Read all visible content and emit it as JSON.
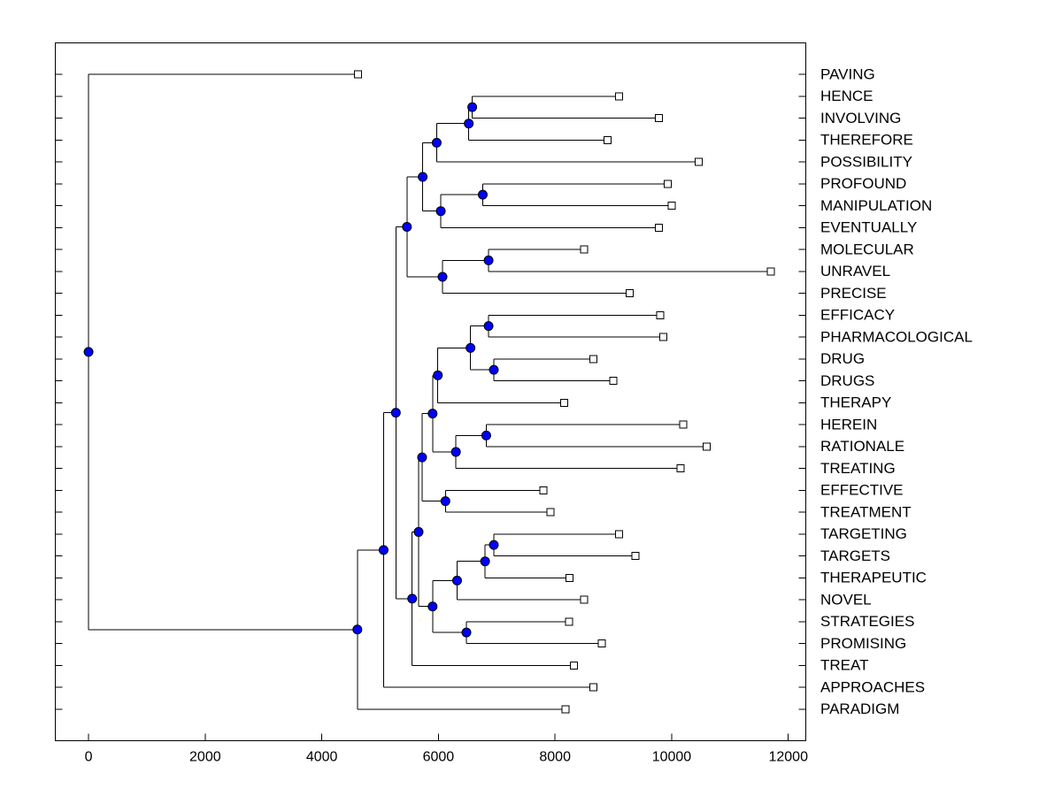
{
  "chart_data": {
    "type": "dendrogram",
    "orientation": "horizontal",
    "xticks": [
      0,
      2000,
      4000,
      6000,
      8000,
      10000,
      12000
    ],
    "xlim": [
      -570,
      12300
    ],
    "colors": {
      "node": "#0000ff",
      "leaf": "#ffffff",
      "line": "#000000"
    },
    "leaves": [
      {
        "label": "PAVING",
        "x": 4620
      },
      {
        "label": "HENCE",
        "x": 9100
      },
      {
        "label": "INVOLVING",
        "x": 9780
      },
      {
        "label": "THEREFORE",
        "x": 8900
      },
      {
        "label": "POSSIBILITY",
        "x": 10460
      },
      {
        "label": "PROFOUND",
        "x": 9930
      },
      {
        "label": "MANIPULATION",
        "x": 10000
      },
      {
        "label": "EVENTUALLY",
        "x": 9780
      },
      {
        "label": "MOLECULAR",
        "x": 8500
      },
      {
        "label": "UNRAVEL",
        "x": 11700
      },
      {
        "label": "PRECISE",
        "x": 9280
      },
      {
        "label": "EFFICACY",
        "x": 9800
      },
      {
        "label": "PHARMACOLOGICAL",
        "x": 9860
      },
      {
        "label": "DRUG",
        "x": 8660
      },
      {
        "label": "DRUGS",
        "x": 9000
      },
      {
        "label": "THERAPY",
        "x": 8160
      },
      {
        "label": "HEREIN",
        "x": 10200
      },
      {
        "label": "RATIONALE",
        "x": 10600
      },
      {
        "label": "TREATING",
        "x": 10150
      },
      {
        "label": "EFFECTIVE",
        "x": 7800
      },
      {
        "label": "TREATMENT",
        "x": 7920
      },
      {
        "label": "TARGETING",
        "x": 9100
      },
      {
        "label": "TARGETS",
        "x": 9380
      },
      {
        "label": "THERAPEUTIC",
        "x": 8250
      },
      {
        "label": "NOVEL",
        "x": 8500
      },
      {
        "label": "STRATEGIES",
        "x": 8240
      },
      {
        "label": "PROMISING",
        "x": 8800
      },
      {
        "label": "TREAT",
        "x": 8320
      },
      {
        "label": "APPROACHES",
        "x": 8660
      },
      {
        "label": "PARADIGM",
        "x": 8180
      }
    ],
    "merges": [
      {
        "id": "a1",
        "x": 6580,
        "children": [
          "L1",
          "L2"
        ]
      },
      {
        "id": "a2",
        "x": 6520,
        "children": [
          "a1",
          "L3"
        ]
      },
      {
        "id": "a3",
        "x": 5970,
        "children": [
          "a2",
          "L4"
        ]
      },
      {
        "id": "a4",
        "x": 6760,
        "children": [
          "L5",
          "L6"
        ]
      },
      {
        "id": "a5",
        "x": 6040,
        "children": [
          "a4",
          "L7"
        ]
      },
      {
        "id": "a6",
        "x": 5730,
        "children": [
          "a3",
          "a5"
        ]
      },
      {
        "id": "a7",
        "x": 6860,
        "children": [
          "L8",
          "L9"
        ]
      },
      {
        "id": "a8",
        "x": 6070,
        "children": [
          "a7",
          "L10"
        ]
      },
      {
        "id": "a9",
        "x": 5460,
        "children": [
          "a6",
          "a8"
        ]
      },
      {
        "id": "b1",
        "x": 6860,
        "children": [
          "L11",
          "L12"
        ]
      },
      {
        "id": "b2",
        "x": 6950,
        "children": [
          "L13",
          "L14"
        ]
      },
      {
        "id": "b3",
        "x": 6550,
        "children": [
          "b1",
          "b2"
        ]
      },
      {
        "id": "b4",
        "x": 5990,
        "children": [
          "b3",
          "L15"
        ]
      },
      {
        "id": "b5",
        "x": 6820,
        "children": [
          "L16",
          "L17"
        ]
      },
      {
        "id": "b6",
        "x": 6300,
        "children": [
          "b5",
          "L18"
        ]
      },
      {
        "id": "b7",
        "x": 5900,
        "children": [
          "b4",
          "b6"
        ]
      },
      {
        "id": "b8",
        "x": 6120,
        "children": [
          "L19",
          "L20"
        ]
      },
      {
        "id": "b9",
        "x": 5720,
        "children": [
          "b7",
          "b8"
        ]
      },
      {
        "id": "c1",
        "x": 6950,
        "children": [
          "L21",
          "L22"
        ]
      },
      {
        "id": "c2",
        "x": 6800,
        "children": [
          "c1",
          "L23"
        ]
      },
      {
        "id": "c3",
        "x": 6320,
        "children": [
          "c2",
          "L24"
        ]
      },
      {
        "id": "c4",
        "x": 6480,
        "children": [
          "L25",
          "L26"
        ]
      },
      {
        "id": "c5",
        "x": 5900,
        "children": [
          "c3",
          "c4"
        ]
      },
      {
        "id": "c6",
        "x": 5660,
        "children": [
          "b9",
          "c5"
        ]
      },
      {
        "id": "c7",
        "x": 5550,
        "children": [
          "c6",
          "L27"
        ]
      },
      {
        "id": "d1",
        "x": 5270,
        "children": [
          "a9",
          "c7"
        ]
      },
      {
        "id": "d2",
        "x": 5060,
        "children": [
          "d1",
          "L28"
        ]
      },
      {
        "id": "d3",
        "x": 4610,
        "children": [
          "d2",
          "L29"
        ]
      },
      {
        "id": "root",
        "x": 0,
        "children": [
          "L0",
          "d3"
        ]
      }
    ]
  }
}
